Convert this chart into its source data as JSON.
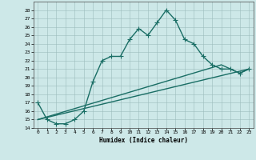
{
  "title": "",
  "xlabel": "Humidex (Indice chaleur)",
  "background_color": "#cde8e8",
  "grid_color": "#9bbcbc",
  "line_color": "#1a6e65",
  "xlim": [
    -0.5,
    23.5
  ],
  "ylim": [
    14,
    29
  ],
  "yticks": [
    14,
    15,
    16,
    17,
    18,
    19,
    20,
    21,
    22,
    23,
    24,
    25,
    26,
    27,
    28
  ],
  "xticks": [
    0,
    1,
    2,
    3,
    4,
    5,
    6,
    7,
    8,
    9,
    10,
    11,
    12,
    13,
    14,
    15,
    16,
    17,
    18,
    19,
    20,
    21,
    22,
    23
  ],
  "series1_x": [
    0,
    1,
    2,
    3,
    4,
    5,
    6,
    7,
    8,
    9,
    10,
    11,
    12,
    13,
    14,
    15,
    16,
    17,
    18,
    19,
    20,
    21,
    22,
    23
  ],
  "series1_y": [
    17,
    15,
    14.5,
    14.5,
    15,
    16,
    19.5,
    22,
    22.5,
    22.5,
    24.5,
    25.8,
    25,
    26.5,
    28,
    26.8,
    24.5,
    24,
    22.5,
    21.5,
    21,
    21,
    20.5,
    21
  ],
  "series2_x": [
    0,
    23
  ],
  "series2_y": [
    15,
    21
  ],
  "series3_x": [
    0,
    20,
    21,
    22,
    23
  ],
  "series3_y": [
    15,
    21.5,
    21,
    20.5,
    21
  ],
  "marker": "+",
  "markersize": 4,
  "linewidth": 1.0
}
